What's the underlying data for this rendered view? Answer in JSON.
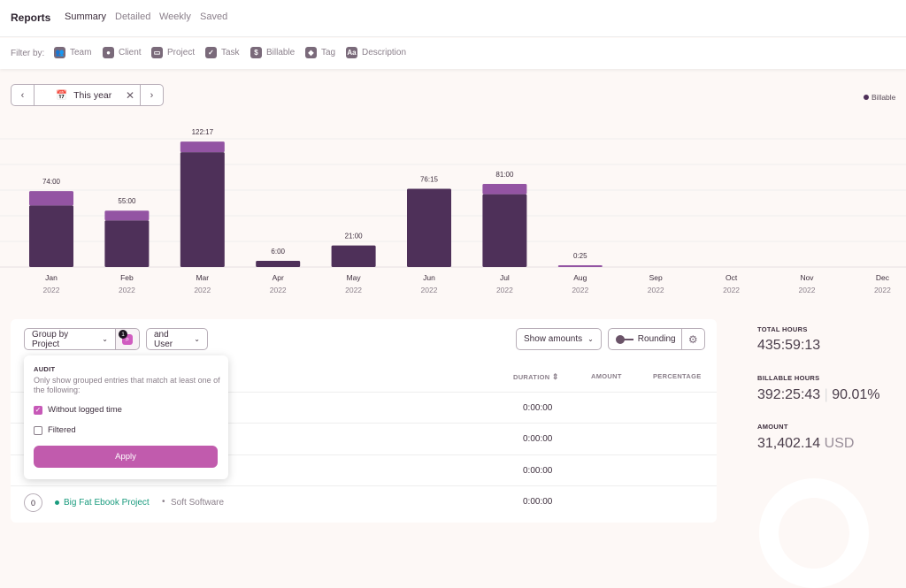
{
  "header": {
    "title": "Reports",
    "tabs": [
      {
        "label": "Summary",
        "active": true
      },
      {
        "label": "Detailed"
      },
      {
        "label": "Weekly"
      },
      {
        "label": "Saved"
      }
    ]
  },
  "filters": {
    "label": "Filter by:",
    "items": [
      {
        "label": "Team",
        "icon": "team-icon"
      },
      {
        "label": "Client",
        "icon": "client-icon"
      },
      {
        "label": "Project",
        "icon": "folder-icon"
      },
      {
        "label": "Task",
        "icon": "check-icon"
      },
      {
        "label": "Billable",
        "icon": "dollar-icon"
      },
      {
        "label": "Tag",
        "icon": "tag-icon"
      },
      {
        "label": "Description",
        "icon": "text-icon"
      }
    ]
  },
  "date_range": {
    "value": "This year"
  },
  "chart_data": {
    "type": "bar",
    "stacked": true,
    "categories": [
      "Jan",
      "Feb",
      "Mar",
      "Apr",
      "May",
      "Jun",
      "Jul",
      "Aug",
      "Sep",
      "Oct",
      "Nov",
      "Dec"
    ],
    "year": "2022",
    "total_labels": [
      "74:00",
      "55:00",
      "122:17",
      "6:00",
      "21:00",
      "76:15",
      "81:00",
      "0:25",
      "",
      "",
      "",
      ""
    ],
    "series": [
      {
        "name": "Billable",
        "color": "#4e3059",
        "values": [
          60,
          45.5,
          112,
          6,
          21,
          76.25,
          71,
          0,
          0,
          0,
          0,
          0
        ]
      },
      {
        "color": "#9354a3",
        "values": [
          14,
          9.5,
          10.3,
          0,
          0,
          0,
          10,
          0.42,
          0,
          0,
          0,
          0
        ]
      }
    ],
    "ylim": [
      0,
      150
    ],
    "grid": true,
    "legend": "top-right"
  },
  "toolbar": {
    "group_by": "Group by Project",
    "audit_badge": "1",
    "and_user": "and User",
    "show_amounts": "Show amounts",
    "rounding": "Rounding"
  },
  "table": {
    "headers": {
      "duration": "DURATION",
      "amount": "AMOUNT",
      "percentage": "PERCENTAGE"
    },
    "rows": [
      {
        "duration": "0:00:00"
      },
      {
        "duration": "0:00:00"
      },
      {
        "duration": "0:00:00"
      },
      {
        "count": "0",
        "project": "Big Fat Ebook Project",
        "client": "Soft Software",
        "project_color": "#1a9b7e",
        "duration": "0:00:00"
      }
    ]
  },
  "audit_popup": {
    "title": "AUDIT",
    "description": "Only show grouped entries that match at least one of the following:",
    "options": [
      {
        "label": "Without logged time",
        "checked": true
      },
      {
        "label": "Filtered",
        "checked": false
      }
    ],
    "apply": "Apply"
  },
  "stats": {
    "total_label": "TOTAL HOURS",
    "total": "435:59:13",
    "billable_label": "BILLABLE HOURS",
    "billable": "392:25:43",
    "billable_pct": "90.01%",
    "amount_label": "AMOUNT",
    "amount": "31,402.14",
    "currency": "USD"
  }
}
